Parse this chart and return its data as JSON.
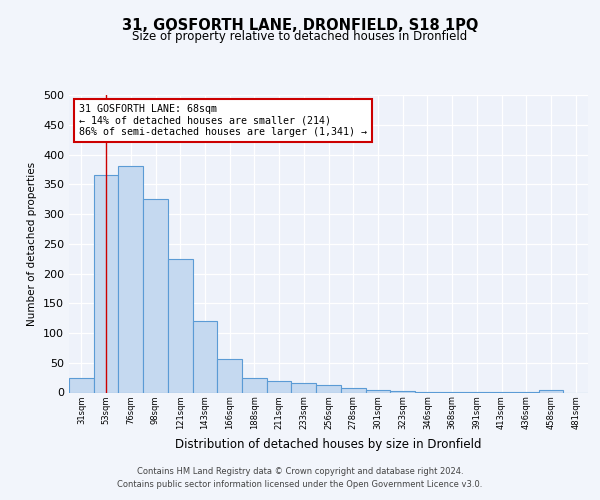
{
  "title1": "31, GOSFORTH LANE, DRONFIELD, S18 1PQ",
  "title2": "Size of property relative to detached houses in Dronfield",
  "xlabel": "Distribution of detached houses by size in Dronfield",
  "ylabel": "Number of detached properties",
  "bin_labels": [
    "31sqm",
    "53sqm",
    "76sqm",
    "98sqm",
    "121sqm",
    "143sqm",
    "166sqm",
    "188sqm",
    "211sqm",
    "233sqm",
    "256sqm",
    "278sqm",
    "301sqm",
    "323sqm",
    "346sqm",
    "368sqm",
    "391sqm",
    "413sqm",
    "436sqm",
    "458sqm",
    "481sqm"
  ],
  "bar_values": [
    25,
    365,
    380,
    325,
    225,
    120,
    57,
    25,
    20,
    16,
    13,
    7,
    5,
    2,
    1,
    1,
    1,
    1,
    1,
    4,
    0
  ],
  "bar_color": "#c5d9f0",
  "bar_edge_color": "#5b9bd5",
  "vline_x": 1.0,
  "vline_color": "#cc0000",
  "annotation_text": "31 GOSFORTH LANE: 68sqm\n← 14% of detached houses are smaller (214)\n86% of semi-detached houses are larger (1,341) →",
  "annotation_box_color": "#ffffff",
  "annotation_box_edge": "#cc0000",
  "ylim": [
    0,
    500
  ],
  "yticks": [
    0,
    50,
    100,
    150,
    200,
    250,
    300,
    350,
    400,
    450,
    500
  ],
  "footer1": "Contains HM Land Registry data © Crown copyright and database right 2024.",
  "footer2": "Contains public sector information licensed under the Open Government Licence v3.0.",
  "bg_color": "#f2f5fb",
  "plot_bg_color": "#eef2fa"
}
